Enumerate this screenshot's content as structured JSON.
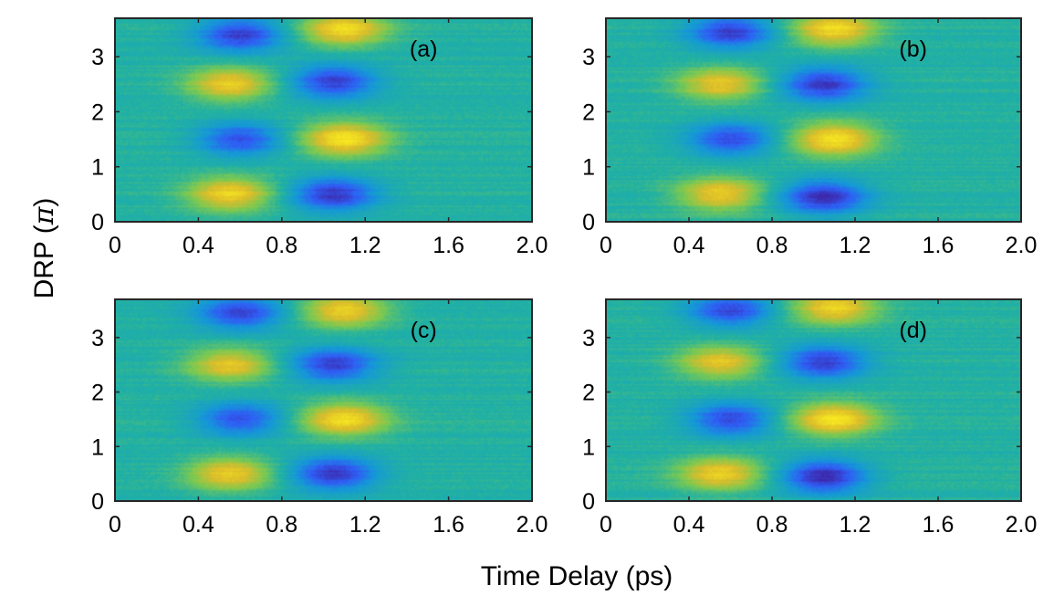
{
  "figure": {
    "xlabel": "Time Delay (ps)",
    "ylabel_main": "DRP (",
    "ylabel_symbol": "π",
    "ylabel_close": ")"
  },
  "colors": {
    "background": "#ffffff",
    "axis": "#262626",
    "colormap": [
      "#3e26a8",
      "#2f5ef5",
      "#1598d8",
      "#21b1a3",
      "#7ac952",
      "#dcbd2a",
      "#f8e920"
    ]
  },
  "chart_data": [
    {
      "type": "heatmap",
      "panel": "(a)",
      "xlim": [
        0,
        2.0
      ],
      "ylim": [
        0,
        3.7
      ],
      "xticks": [
        0,
        0.4,
        0.8,
        1.2,
        1.6,
        2.0
      ],
      "xtick_labels": [
        "0",
        "0.4",
        "0.8",
        "1.2",
        "1.6",
        "2.0"
      ],
      "yticks": [
        0,
        1,
        2,
        3
      ],
      "ytick_labels": [
        "0",
        "1",
        "2",
        "3"
      ],
      "color_scale": "normalized signal, blue = low, yellow = high",
      "features": [
        {
          "sign": "high",
          "t": 0.55,
          "drp": 0.5,
          "amplitude": 0.85
        },
        {
          "sign": "low",
          "t": 0.6,
          "drp": 1.5,
          "amplitude": 0.75
        },
        {
          "sign": "high",
          "t": 0.55,
          "drp": 2.5,
          "amplitude": 0.8
        },
        {
          "sign": "low",
          "t": 0.6,
          "drp": 3.4,
          "amplitude": 0.85
        },
        {
          "sign": "low",
          "t": 1.05,
          "drp": 0.5,
          "amplitude": 0.9
        },
        {
          "sign": "high",
          "t": 1.1,
          "drp": 1.5,
          "amplitude": 0.95
        },
        {
          "sign": "low",
          "t": 1.05,
          "drp": 2.55,
          "amplitude": 0.85
        },
        {
          "sign": "high",
          "t": 1.1,
          "drp": 3.5,
          "amplitude": 0.9
        }
      ]
    },
    {
      "type": "heatmap",
      "panel": "(b)",
      "xlim": [
        0,
        2.0
      ],
      "ylim": [
        0,
        3.7
      ],
      "xticks": [
        0,
        0.4,
        0.8,
        1.2,
        1.6,
        2.0
      ],
      "xtick_labels": [
        "0",
        "0.4",
        "0.8",
        "1.2",
        "1.6",
        "2.0"
      ],
      "yticks": [
        0,
        1,
        2,
        3
      ],
      "ytick_labels": [
        "0",
        "1",
        "2",
        "3"
      ],
      "color_scale": "normalized signal, blue = low, yellow = high",
      "features": [
        {
          "sign": "high",
          "t": 0.55,
          "drp": 0.5,
          "amplitude": 0.8
        },
        {
          "sign": "low",
          "t": 0.6,
          "drp": 1.5,
          "amplitude": 0.75
        },
        {
          "sign": "high",
          "t": 0.55,
          "drp": 2.5,
          "amplitude": 0.75
        },
        {
          "sign": "low",
          "t": 0.6,
          "drp": 3.45,
          "amplitude": 0.85
        },
        {
          "sign": "low",
          "t": 1.05,
          "drp": 0.45,
          "amplitude": 0.95
        },
        {
          "sign": "high",
          "t": 1.1,
          "drp": 1.5,
          "amplitude": 0.95
        },
        {
          "sign": "low",
          "t": 1.05,
          "drp": 2.5,
          "amplitude": 0.9
        },
        {
          "sign": "high",
          "t": 1.1,
          "drp": 3.5,
          "amplitude": 0.9
        }
      ]
    },
    {
      "type": "heatmap",
      "panel": "(c)",
      "xlim": [
        0,
        2.0
      ],
      "ylim": [
        0,
        3.7
      ],
      "xticks": [
        0,
        0.4,
        0.8,
        1.2,
        1.6,
        2.0
      ],
      "xtick_labels": [
        "0",
        "0.4",
        "0.8",
        "1.2",
        "1.6",
        "2.0"
      ],
      "yticks": [
        0,
        1,
        2,
        3
      ],
      "ytick_labels": [
        "0",
        "1",
        "2",
        "3"
      ],
      "color_scale": "normalized signal, blue = low, yellow = high",
      "features": [
        {
          "sign": "high",
          "t": 0.55,
          "drp": 0.5,
          "amplitude": 0.8
        },
        {
          "sign": "low",
          "t": 0.6,
          "drp": 1.5,
          "amplitude": 0.75
        },
        {
          "sign": "high",
          "t": 0.55,
          "drp": 2.5,
          "amplitude": 0.75
        },
        {
          "sign": "low",
          "t": 0.6,
          "drp": 3.45,
          "amplitude": 0.8
        },
        {
          "sign": "low",
          "t": 1.05,
          "drp": 0.5,
          "amplitude": 0.9
        },
        {
          "sign": "high",
          "t": 1.1,
          "drp": 1.5,
          "amplitude": 0.9
        },
        {
          "sign": "low",
          "t": 1.05,
          "drp": 2.5,
          "amplitude": 0.85
        },
        {
          "sign": "high",
          "t": 1.1,
          "drp": 3.5,
          "amplitude": 0.85
        }
      ]
    },
    {
      "type": "heatmap",
      "panel": "(d)",
      "xlim": [
        0,
        2.0
      ],
      "ylim": [
        0,
        3.7
      ],
      "xticks": [
        0,
        0.4,
        0.8,
        1.2,
        1.6,
        2.0
      ],
      "xtick_labels": [
        "0",
        "0.4",
        "0.8",
        "1.2",
        "1.6",
        "2.0"
      ],
      "yticks": [
        0,
        1,
        2,
        3
      ],
      "ytick_labels": [
        "0",
        "1",
        "2",
        "3"
      ],
      "color_scale": "normalized signal, blue = low, yellow = high",
      "features": [
        {
          "sign": "high",
          "t": 0.55,
          "drp": 0.5,
          "amplitude": 0.8
        },
        {
          "sign": "low",
          "t": 0.6,
          "drp": 1.5,
          "amplitude": 0.8
        },
        {
          "sign": "high",
          "t": 0.55,
          "drp": 2.55,
          "amplitude": 0.75
        },
        {
          "sign": "low",
          "t": 0.6,
          "drp": 3.5,
          "amplitude": 0.8
        },
        {
          "sign": "low",
          "t": 1.05,
          "drp": 0.45,
          "amplitude": 1.0
        },
        {
          "sign": "high",
          "t": 1.1,
          "drp": 1.5,
          "amplitude": 0.95
        },
        {
          "sign": "low",
          "t": 1.05,
          "drp": 2.55,
          "amplitude": 0.85
        },
        {
          "sign": "high",
          "t": 1.1,
          "drp": 3.55,
          "amplitude": 0.85
        }
      ]
    }
  ]
}
